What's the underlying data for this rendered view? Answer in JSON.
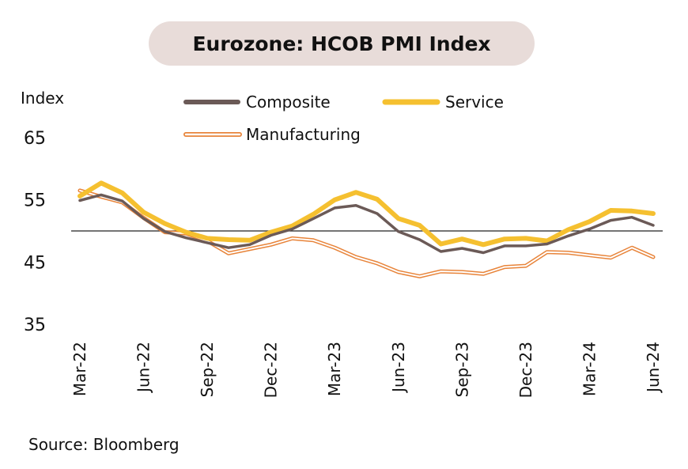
{
  "title": "Eurozone: HCOB PMI Index",
  "source": "Source: Bloomberg",
  "chart_data": {
    "type": "line",
    "title": "Eurozone: HCOB PMI Index",
    "ylabel": "Index",
    "xlabel": "",
    "ylim": [
      35,
      65
    ],
    "yticks": [
      65,
      55,
      45,
      35
    ],
    "reference_line": 50,
    "legend_position": "top",
    "x": [
      "Mar-22",
      "Apr-22",
      "May-22",
      "Jun-22",
      "Jul-22",
      "Aug-22",
      "Sep-22",
      "Oct-22",
      "Nov-22",
      "Dec-22",
      "Jan-23",
      "Feb-23",
      "Mar-23",
      "Apr-23",
      "May-23",
      "Jun-23",
      "Jul-23",
      "Aug-23",
      "Sep-23",
      "Oct-23",
      "Nov-23",
      "Dec-23",
      "Jan-24",
      "Feb-24",
      "Mar-24",
      "Apr-24",
      "May-24",
      "Jun-24"
    ],
    "xtick_labels": [
      "Mar-22",
      "Jun-22",
      "Sep-22",
      "Dec-22",
      "Mar-23",
      "Jun-23",
      "Sep-23",
      "Dec-23",
      "Mar-24",
      "Jun-24"
    ],
    "series": [
      {
        "name": "Composite",
        "color": "#6b5a57",
        "values": [
          54.9,
          55.8,
          54.8,
          52.0,
          49.9,
          48.9,
          48.1,
          47.3,
          47.8,
          49.3,
          50.3,
          52.0,
          53.7,
          54.1,
          52.8,
          49.9,
          48.6,
          46.7,
          47.2,
          46.5,
          47.6,
          47.6,
          47.9,
          49.2,
          50.3,
          51.7,
          52.2,
          50.9
        ]
      },
      {
        "name": "Service",
        "color": "#f5c030",
        "values": [
          55.6,
          57.7,
          56.1,
          53.0,
          51.2,
          49.8,
          48.8,
          48.6,
          48.5,
          49.8,
          50.8,
          52.7,
          55.0,
          56.2,
          55.1,
          52.0,
          50.9,
          47.9,
          48.7,
          47.8,
          48.7,
          48.8,
          48.4,
          50.2,
          51.5,
          53.3,
          53.2,
          52.8
        ]
      },
      {
        "name": "Manufacturing",
        "color": "#e8843a",
        "values": [
          56.5,
          55.5,
          54.6,
          52.1,
          49.8,
          49.6,
          48.4,
          46.4,
          47.1,
          47.8,
          48.8,
          48.5,
          47.3,
          45.8,
          44.8,
          43.4,
          42.7,
          43.5,
          43.4,
          43.1,
          44.2,
          44.4,
          46.6,
          46.5,
          46.1,
          45.7,
          47.3,
          45.8
        ]
      }
    ]
  }
}
